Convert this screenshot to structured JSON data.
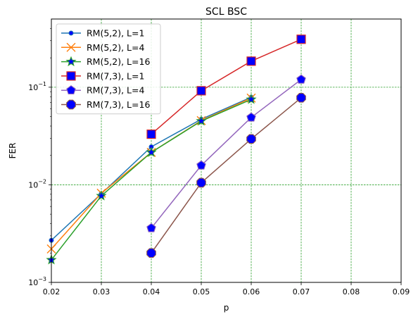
{
  "chart_data": {
    "type": "line",
    "title": "SCL BSC",
    "xlabel": "p",
    "ylabel": "FER",
    "xlim": [
      0.02,
      0.09
    ],
    "ylim": [
      0.001,
      0.5
    ],
    "yscale": "log",
    "grid": true,
    "grid_color": "#2ca02c",
    "legend_placement": "top-left",
    "x_ticks": [
      {
        "value": 0.02,
        "label": "0.02"
      },
      {
        "value": 0.03,
        "label": "0.03"
      },
      {
        "value": 0.04,
        "label": "0.04"
      },
      {
        "value": 0.05,
        "label": "0.05"
      },
      {
        "value": 0.06,
        "label": "0.06"
      },
      {
        "value": 0.07,
        "label": "0.07"
      },
      {
        "value": 0.08,
        "label": "0.08"
      },
      {
        "value": 0.09,
        "label": "0.09"
      }
    ],
    "y_ticks": [
      {
        "value": 0.001,
        "base": "10",
        "exp": "−3"
      },
      {
        "value": 0.01,
        "base": "10",
        "exp": "−2"
      },
      {
        "value": 0.1,
        "base": "10",
        "exp": "−1"
      }
    ],
    "series": [
      {
        "name": "RM(5,2), L=1",
        "color": "#1f77b4",
        "marker": "circle-small",
        "marker_fill": "#0000ff",
        "marker_edge": "#1f77b4",
        "x": [
          0.02,
          0.03,
          0.04,
          0.05,
          0.06
        ],
        "y": [
          0.0027,
          0.0081,
          0.0245,
          0.047,
          0.079
        ]
      },
      {
        "name": "RM(5,2), L=4",
        "color": "#ff7f0e",
        "marker": "x",
        "marker_fill": "#ff7f0e",
        "marker_edge": "#ff7f0e",
        "x": [
          0.02,
          0.03,
          0.04,
          0.05,
          0.06
        ],
        "y": [
          0.0022,
          0.0082,
          0.0215,
          0.0455,
          0.0775
        ]
      },
      {
        "name": "RM(5,2), L=16",
        "color": "#2ca02c",
        "marker": "star",
        "marker_fill": "#0000ff",
        "marker_edge": "#2ca02c",
        "x": [
          0.02,
          0.03,
          0.04,
          0.05,
          0.06
        ],
        "y": [
          0.0017,
          0.0077,
          0.0215,
          0.045,
          0.075
        ]
      },
      {
        "name": "RM(7,3), L=1",
        "color": "#d62728",
        "marker": "square",
        "marker_fill": "#0000ff",
        "marker_edge": "#d62728",
        "x": [
          0.04,
          0.05,
          0.06,
          0.07
        ],
        "y": [
          0.033,
          0.092,
          0.185,
          0.31
        ]
      },
      {
        "name": "RM(7,3), L=4",
        "color": "#9467bd",
        "marker": "pentagon",
        "marker_fill": "#0000ff",
        "marker_edge": "#9467bd",
        "x": [
          0.04,
          0.05,
          0.06,
          0.07
        ],
        "y": [
          0.0036,
          0.0158,
          0.049,
          0.12
        ]
      },
      {
        "name": "RM(7,3), L=16",
        "color": "#8c564b",
        "marker": "octagon",
        "marker_fill": "#0000ff",
        "marker_edge": "#8c564b",
        "x": [
          0.04,
          0.05,
          0.06,
          0.07
        ],
        "y": [
          0.002,
          0.0105,
          0.0295,
          0.078
        ]
      }
    ]
  }
}
